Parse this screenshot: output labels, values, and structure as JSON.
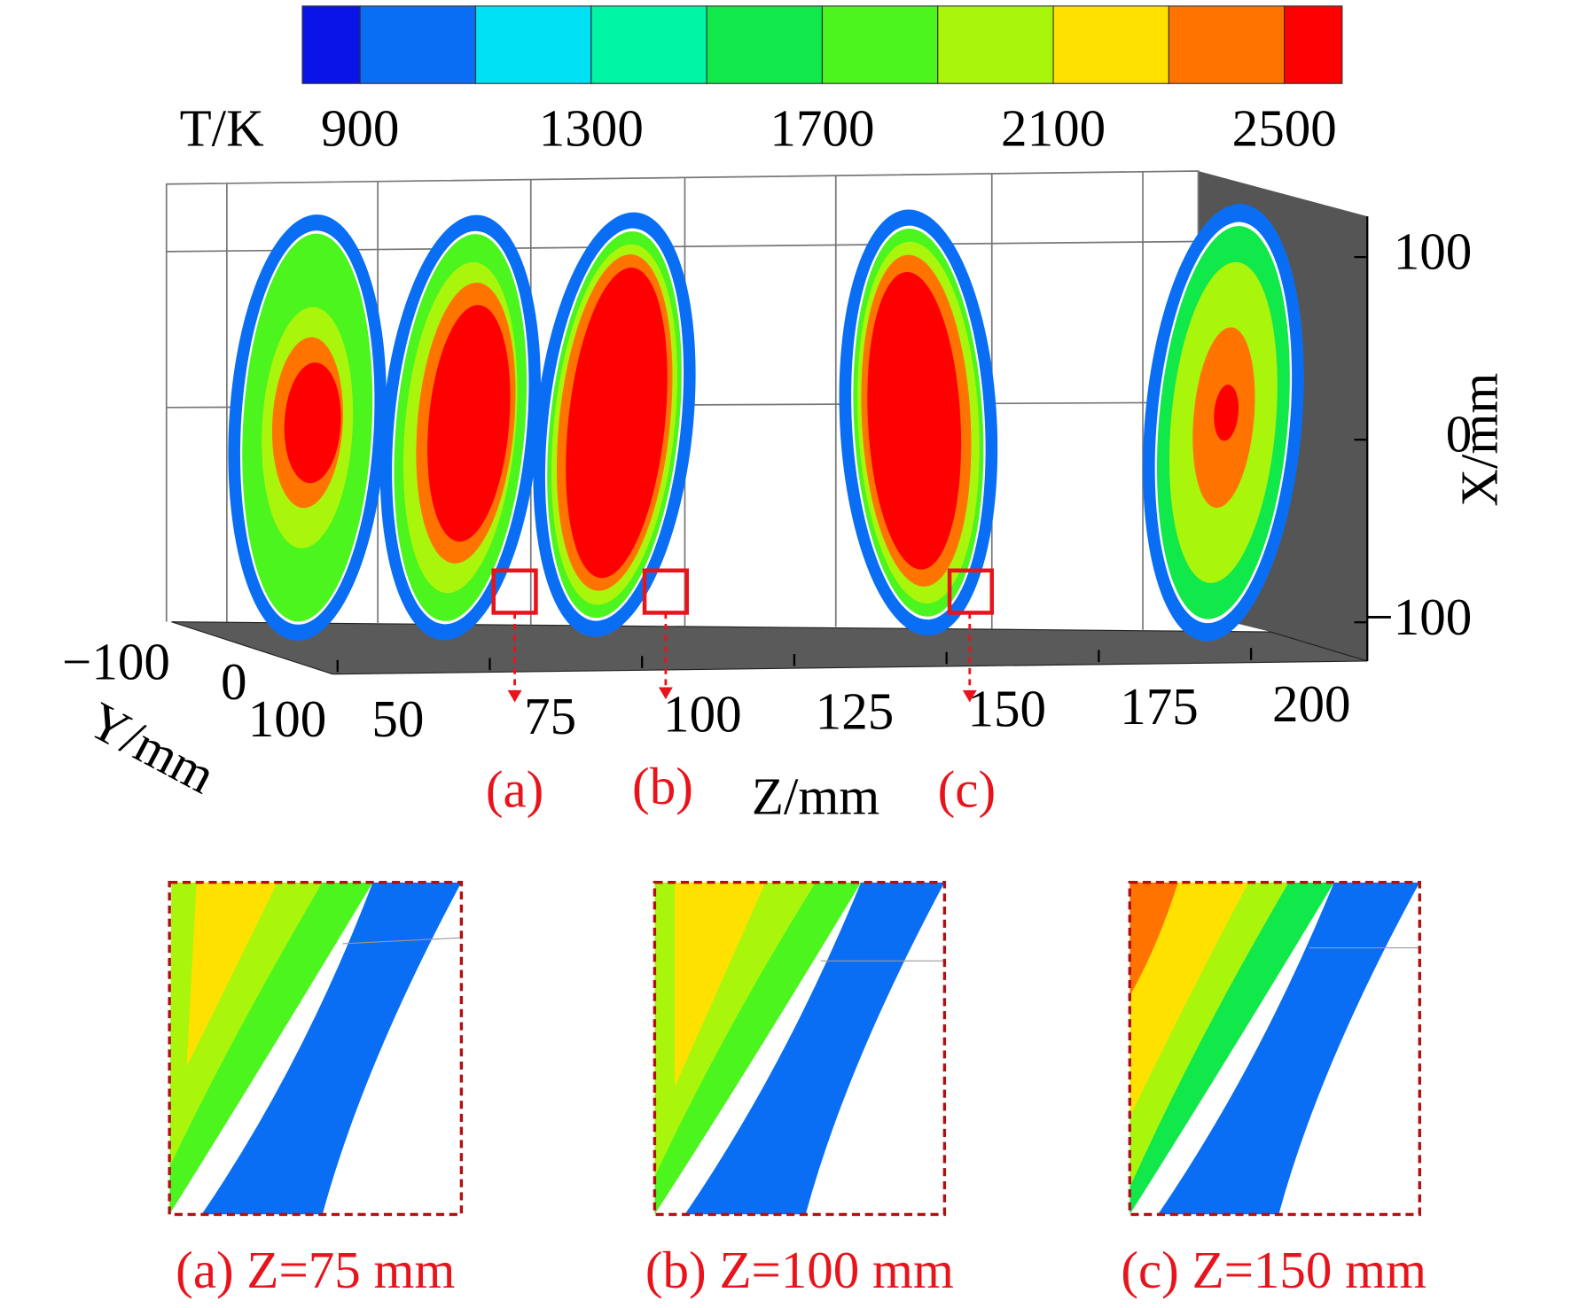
{
  "chart_data": {
    "type": "contour",
    "colorbar": {
      "label": "T/K",
      "clim": [
        800,
        2600
      ],
      "levels": [
        900,
        1100,
        1300,
        1500,
        1700,
        1900,
        2100,
        2300,
        2500
      ],
      "colors": [
        "#0a14e6",
        "#0a6ef5",
        "#00e1f5",
        "#00f5a5",
        "#11e84a",
        "#4bf51d",
        "#aaf50c",
        "#ffe100",
        "#ff7300",
        "#ff0000"
      ],
      "ticks": [
        900,
        1300,
        1700,
        2100,
        2500
      ]
    },
    "x_axis_label": "X/mm",
    "xticks": [
      100,
      0,
      {
        "value": -100,
        "label": "−100"
      }
    ],
    "y_axis_label": "Y/mm",
    "yticks": [
      {
        "value": -100,
        "label": "−100"
      },
      0,
      100
    ],
    "z_axis_label": "Z/mm",
    "zticks": [
      50,
      75,
      100,
      125,
      150,
      175,
      200
    ],
    "annotations": [
      "(a)",
      "(b)",
      "(c)"
    ],
    "insets": [
      "(a) Z=75 mm",
      "(b) Z=100 mm",
      "(c) Z=150 mm"
    ]
  }
}
